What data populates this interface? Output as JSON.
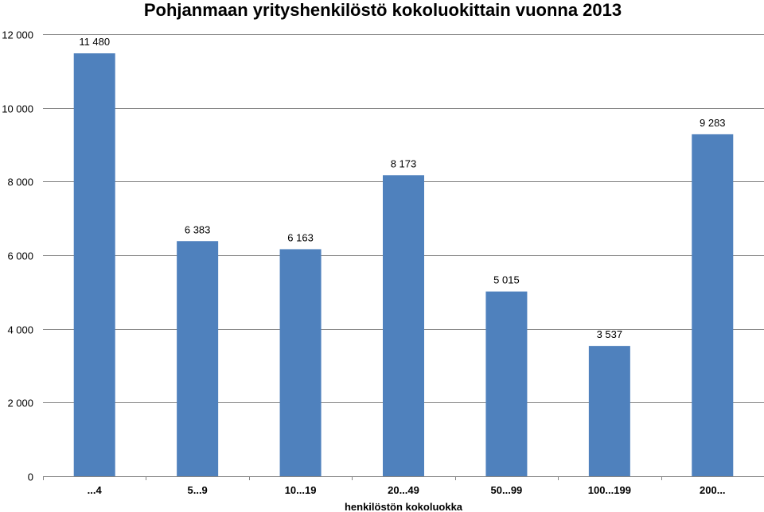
{
  "chart_data": {
    "type": "bar",
    "title": "Pohjanmaan yrityshenkilöstö kokoluokittain vuonna 2013",
    "xlabel": "henkilöstön kokoluokka",
    "ylabel": "",
    "categories": [
      "...4",
      "5...9",
      "10...19",
      "20...49",
      "50...99",
      "100...199",
      "200..."
    ],
    "values": [
      11480,
      6383,
      6163,
      8173,
      5015,
      3537,
      9283
    ],
    "value_labels": [
      "11 480",
      "6 383",
      "6 163",
      "8 173",
      "5 015",
      "3 537",
      "9 283"
    ],
    "yticks": [
      0,
      2000,
      4000,
      6000,
      8000,
      10000,
      12000
    ],
    "ytick_labels": [
      "0",
      "2 000",
      "4 000",
      "6 000",
      "8 000",
      "10 000",
      "12 000"
    ],
    "ylim": [
      0,
      12000
    ],
    "grid": true,
    "legend": "none",
    "bar_color": "#4f81bd",
    "grid_color": "#868686"
  }
}
